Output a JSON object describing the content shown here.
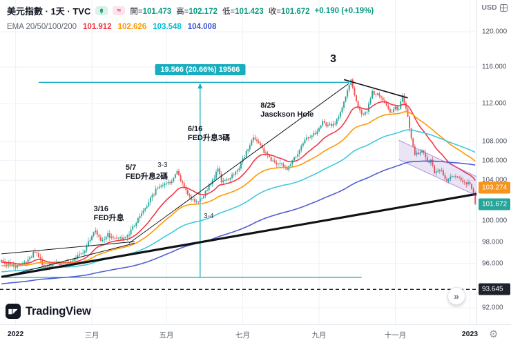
{
  "header": {
    "symbol_title": "美元指數 · 1天 · TVC",
    "toggles": [
      {
        "name": "candles-indicator-toggle"
      },
      {
        "name": "wave-indicator-toggle",
        "glyph": "≈"
      }
    ],
    "ohlc": [
      {
        "label": "開=",
        "value": "101.473"
      },
      {
        "label": "高=",
        "value": "102.172"
      },
      {
        "label": "低=",
        "value": "101.423"
      },
      {
        "label": "收=",
        "value": "101.672"
      }
    ],
    "change": "+0.190 (+0.19%)",
    "ema_legend": {
      "label": "EMA 20/50/100/200",
      "values": [
        {
          "text": "101.912",
          "color": "#f23645"
        },
        {
          "text": "102.626",
          "color": "#ff9800"
        },
        {
          "text": "103.548",
          "color": "#00bcd4"
        },
        {
          "text": "104.008",
          "color": "#3d52d5"
        }
      ]
    }
  },
  "price_axis": {
    "currency": "USD",
    "labels": [
      {
        "text": "120.000",
        "price": 120
      },
      {
        "text": "116.000",
        "price": 116
      },
      {
        "text": "112.000",
        "price": 112
      },
      {
        "text": "108.000",
        "price": 108
      },
      {
        "text": "106.000",
        "price": 106
      },
      {
        "text": "104.000",
        "price": 104
      },
      {
        "text": "100.000",
        "price": 100
      },
      {
        "text": "98.000",
        "price": 98
      },
      {
        "text": "96.000",
        "price": 96
      },
      {
        "text": "92.000",
        "price": 92
      }
    ],
    "badges": [
      {
        "text": "103.274",
        "price": 103.274,
        "bg": "#f7941d"
      },
      {
        "text": "101.672",
        "price": 101.672,
        "bg": "#26a69a"
      },
      {
        "text": "93.645",
        "price": 93.645,
        "bg": "#1e222d"
      }
    ]
  },
  "time_axis": {
    "labels": [
      {
        "text": "2022",
        "i": 8,
        "year": true
      },
      {
        "text": "三月",
        "i": 51
      },
      {
        "text": "五月",
        "i": 93
      },
      {
        "text": "七月",
        "i": 136
      },
      {
        "text": "九月",
        "i": 179
      },
      {
        "text": "十一月",
        "i": 222
      },
      {
        "text": "2023",
        "i": 264,
        "year": true
      }
    ]
  },
  "controls": {
    "jump_label": "»",
    "settings_glyph": "⚙"
  },
  "attribution": {
    "text": "TradingView"
  },
  "chart_data": {
    "type": "candlestick",
    "title": "美元指數 (US Dollar Index)",
    "interval": "1天",
    "exchange": "TVC",
    "scale": "log",
    "ylim": [
      92,
      120
    ],
    "n": 268,
    "up_color": "#26a69a",
    "down_color": "#ef5350",
    "close_anchors": [
      [
        0,
        96.2
      ],
      [
        8,
        95.8
      ],
      [
        14,
        96.1
      ],
      [
        19,
        97.2
      ],
      [
        24,
        95.6
      ],
      [
        30,
        96.0
      ],
      [
        38,
        96.1
      ],
      [
        45,
        96.8
      ],
      [
        47,
        97.3
      ],
      [
        53,
        99.2
      ],
      [
        56,
        98.1
      ],
      [
        60,
        98.7
      ],
      [
        63,
        98.3
      ],
      [
        70,
        98.4
      ],
      [
        78,
        100.4
      ],
      [
        88,
        103.3
      ],
      [
        91,
        103.6
      ],
      [
        96,
        103.8
      ],
      [
        99,
        104.8
      ],
      [
        103,
        103.2
      ],
      [
        107,
        102.1
      ],
      [
        111,
        101.8
      ],
      [
        113,
        102.3
      ],
      [
        120,
        104.3
      ],
      [
        122,
        105.3
      ],
      [
        124,
        103.9
      ],
      [
        129,
        104.3
      ],
      [
        133,
        104.9
      ],
      [
        138,
        106.9
      ],
      [
        142,
        108.5
      ],
      [
        148,
        106.9
      ],
      [
        153,
        105.9
      ],
      [
        157,
        105.6
      ],
      [
        161,
        105.2
      ],
      [
        167,
        106.7
      ],
      [
        171,
        108.3
      ],
      [
        174,
        108.5
      ],
      [
        177,
        108.8
      ],
      [
        181,
        110.0
      ],
      [
        184,
        109.6
      ],
      [
        188,
        109.8
      ],
      [
        192,
        111.4
      ],
      [
        196,
        113.9
      ],
      [
        197,
        114.6
      ],
      [
        200,
        112.2
      ],
      [
        203,
        110.8
      ],
      [
        206,
        111.2
      ],
      [
        209,
        113.2
      ],
      [
        213,
        112.9
      ],
      [
        216,
        112.1
      ],
      [
        219,
        110.9
      ],
      [
        222,
        111.5
      ],
      [
        224,
        111.4
      ],
      [
        226,
        112.9
      ],
      [
        229,
        110.7
      ],
      [
        231,
        108.2
      ],
      [
        233,
        106.5
      ],
      [
        237,
        107.1
      ],
      [
        240,
        105.9
      ],
      [
        242,
        106.0
      ],
      [
        244,
        104.9
      ],
      [
        247,
        105.2
      ],
      [
        251,
        103.9
      ],
      [
        255,
        104.6
      ],
      [
        259,
        104.1
      ],
      [
        262,
        103.6
      ],
      [
        264,
        103.8
      ],
      [
        266,
        102.6
      ],
      [
        268,
        101.672
      ]
    ],
    "emas": [
      {
        "period": 20,
        "color": "#f23645"
      },
      {
        "period": 50,
        "color": "#ff9800"
      },
      {
        "period": 100,
        "color": "#3fc9dc"
      },
      {
        "period": 200,
        "color": "#4e5fd4"
      }
    ],
    "measurement": {
      "label": "19.566 (20.66%) 19566",
      "color": "#18aebf",
      "top_price": 114.3,
      "bottom_price": 94.74,
      "top_i1": 21,
      "top_i2": 196,
      "bottom_i1": 0,
      "bottom_i2": 203,
      "arrow_i": 112
    },
    "trendlines": [
      {
        "i1": 0,
        "p1": 96.9,
        "i2": 75,
        "p2": 98.05,
        "w": 1
      },
      {
        "i1": 0,
        "p1": 94.75,
        "i2": 75,
        "p2": 97.9,
        "w": 1
      },
      {
        "i1": 72,
        "p1": 97.9,
        "i2": 196,
        "p2": 114.2,
        "w": 1
      },
      {
        "i1": 193,
        "p1": 114.6,
        "i2": 229,
        "p2": 112.6,
        "w": 1.6
      },
      {
        "i1": 0,
        "p1": 94.78,
        "i2": 268,
        "p2": 102.66,
        "w": 3.2
      }
    ],
    "channel": {
      "i1": 224,
      "top_p1": 108.1,
      "bot_p1": 106.1,
      "i2": 270,
      "top_p2": 104.2,
      "bot_p2": 102.3,
      "fill": "rgba(126,87,194,0.16)",
      "stroke": "rgba(126,87,194,0.6)"
    },
    "level_line": {
      "price": 93.645,
      "style": "dashed",
      "color": "#1e222d"
    },
    "annotations": [
      {
        "text": "3",
        "i": 187,
        "price": 117.4,
        "style": "big"
      },
      {
        "text": "8/25\nJasckson Hole",
        "i": 146,
        "price": 112.2,
        "style": "note"
      },
      {
        "text": "6/16\nFED升息3碼",
        "i": 105,
        "price": 109.7,
        "style": "note"
      },
      {
        "text": "5/7\nFED升息2碼",
        "i": 70,
        "price": 105.7,
        "style": "note"
      },
      {
        "text": "3/16\nFED升息",
        "i": 52,
        "price": 101.6,
        "style": "note"
      },
      {
        "text": "3-3",
        "i": 88,
        "price": 105.95,
        "style": "small"
      },
      {
        "text": "3-4",
        "i": 114,
        "price": 100.9,
        "style": "small"
      }
    ]
  }
}
